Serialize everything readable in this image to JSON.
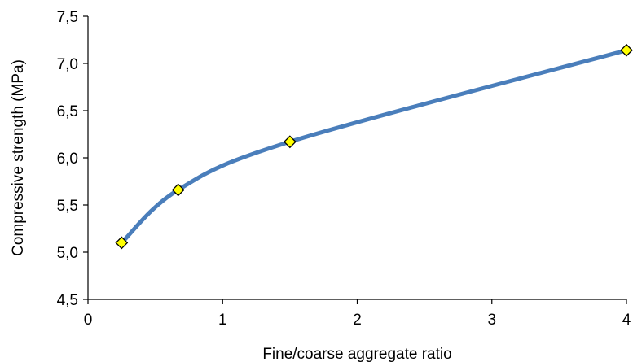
{
  "chart_data": {
    "type": "scatter",
    "title": "",
    "xlabel": "Fine/coarse aggregate ratio",
    "ylabel": "Compressive strength (MPa)",
    "xlim": [
      0,
      4
    ],
    "ylim": [
      4.5,
      7.5
    ],
    "x_ticks": [
      "0",
      "1",
      "2",
      "3",
      "4"
    ],
    "y_ticks": [
      "4,5",
      "5,0",
      "5,5",
      "6,0",
      "6,5",
      "7,0",
      "7,5"
    ],
    "grid": false,
    "legend": "none",
    "smoothed_line": true,
    "series": [
      {
        "x": [
          0.25,
          0.67,
          1.5,
          4.0
        ],
        "y": [
          5.1,
          5.66,
          6.17,
          7.14
        ]
      }
    ],
    "colors": {
      "line": "#4a7ebb",
      "marker_fill": "#ffff00",
      "marker_stroke": "#000000",
      "axis": "#000000"
    }
  }
}
